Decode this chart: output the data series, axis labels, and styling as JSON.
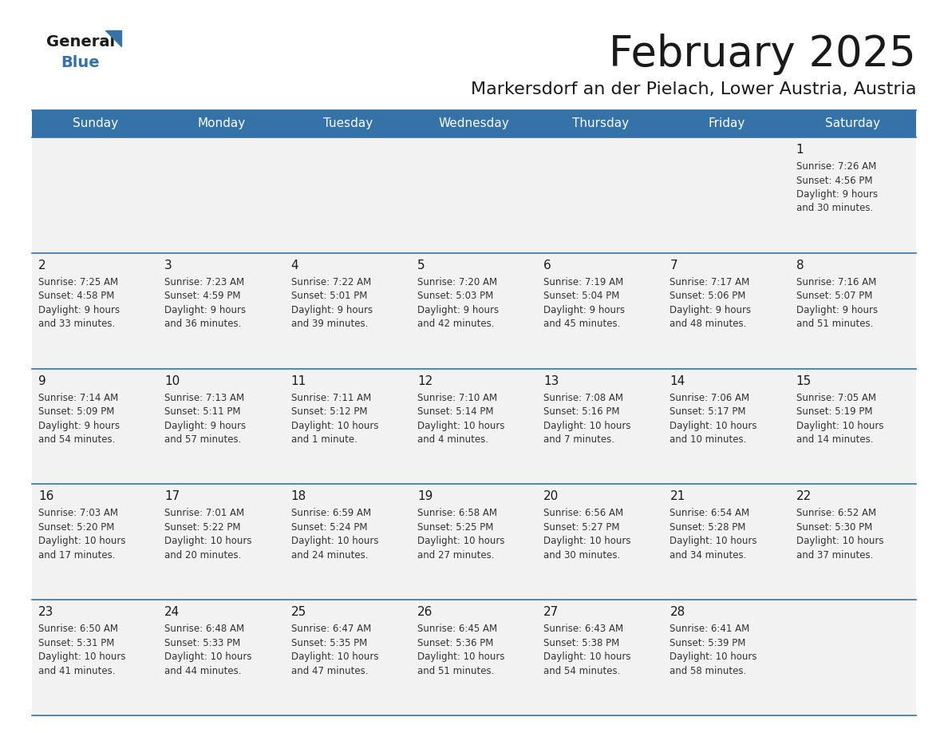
{
  "title": "February 2025",
  "subtitle": "Markersdorf an der Pielach, Lower Austria, Austria",
  "header_bg": "#3472a8",
  "header_text": "#ffffff",
  "day_names": [
    "Sunday",
    "Monday",
    "Tuesday",
    "Wednesday",
    "Thursday",
    "Friday",
    "Saturday"
  ],
  "cell_bg": "#f2f2f2",
  "cell_border_color": "#3472a8",
  "date_color": "#1a1a1a",
  "info_color": "#333333",
  "calendar": [
    [
      null,
      null,
      null,
      null,
      null,
      null,
      {
        "day": 1,
        "sunrise": "7:26 AM",
        "sunset": "4:56 PM",
        "daylight_l1": "9 hours",
        "daylight_l2": "and 30 minutes."
      }
    ],
    [
      {
        "day": 2,
        "sunrise": "7:25 AM",
        "sunset": "4:58 PM",
        "daylight_l1": "9 hours",
        "daylight_l2": "and 33 minutes."
      },
      {
        "day": 3,
        "sunrise": "7:23 AM",
        "sunset": "4:59 PM",
        "daylight_l1": "9 hours",
        "daylight_l2": "and 36 minutes."
      },
      {
        "day": 4,
        "sunrise": "7:22 AM",
        "sunset": "5:01 PM",
        "daylight_l1": "9 hours",
        "daylight_l2": "and 39 minutes."
      },
      {
        "day": 5,
        "sunrise": "7:20 AM",
        "sunset": "5:03 PM",
        "daylight_l1": "9 hours",
        "daylight_l2": "and 42 minutes."
      },
      {
        "day": 6,
        "sunrise": "7:19 AM",
        "sunset": "5:04 PM",
        "daylight_l1": "9 hours",
        "daylight_l2": "and 45 minutes."
      },
      {
        "day": 7,
        "sunrise": "7:17 AM",
        "sunset": "5:06 PM",
        "daylight_l1": "9 hours",
        "daylight_l2": "and 48 minutes."
      },
      {
        "day": 8,
        "sunrise": "7:16 AM",
        "sunset": "5:07 PM",
        "daylight_l1": "9 hours",
        "daylight_l2": "and 51 minutes."
      }
    ],
    [
      {
        "day": 9,
        "sunrise": "7:14 AM",
        "sunset": "5:09 PM",
        "daylight_l1": "9 hours",
        "daylight_l2": "and 54 minutes."
      },
      {
        "day": 10,
        "sunrise": "7:13 AM",
        "sunset": "5:11 PM",
        "daylight_l1": "9 hours",
        "daylight_l2": "and 57 minutes."
      },
      {
        "day": 11,
        "sunrise": "7:11 AM",
        "sunset": "5:12 PM",
        "daylight_l1": "10 hours",
        "daylight_l2": "and 1 minute."
      },
      {
        "day": 12,
        "sunrise": "7:10 AM",
        "sunset": "5:14 PM",
        "daylight_l1": "10 hours",
        "daylight_l2": "and 4 minutes."
      },
      {
        "day": 13,
        "sunrise": "7:08 AM",
        "sunset": "5:16 PM",
        "daylight_l1": "10 hours",
        "daylight_l2": "and 7 minutes."
      },
      {
        "day": 14,
        "sunrise": "7:06 AM",
        "sunset": "5:17 PM",
        "daylight_l1": "10 hours",
        "daylight_l2": "and 10 minutes."
      },
      {
        "day": 15,
        "sunrise": "7:05 AM",
        "sunset": "5:19 PM",
        "daylight_l1": "10 hours",
        "daylight_l2": "and 14 minutes."
      }
    ],
    [
      {
        "day": 16,
        "sunrise": "7:03 AM",
        "sunset": "5:20 PM",
        "daylight_l1": "10 hours",
        "daylight_l2": "and 17 minutes."
      },
      {
        "day": 17,
        "sunrise": "7:01 AM",
        "sunset": "5:22 PM",
        "daylight_l1": "10 hours",
        "daylight_l2": "and 20 minutes."
      },
      {
        "day": 18,
        "sunrise": "6:59 AM",
        "sunset": "5:24 PM",
        "daylight_l1": "10 hours",
        "daylight_l2": "and 24 minutes."
      },
      {
        "day": 19,
        "sunrise": "6:58 AM",
        "sunset": "5:25 PM",
        "daylight_l1": "10 hours",
        "daylight_l2": "and 27 minutes."
      },
      {
        "day": 20,
        "sunrise": "6:56 AM",
        "sunset": "5:27 PM",
        "daylight_l1": "10 hours",
        "daylight_l2": "and 30 minutes."
      },
      {
        "day": 21,
        "sunrise": "6:54 AM",
        "sunset": "5:28 PM",
        "daylight_l1": "10 hours",
        "daylight_l2": "and 34 minutes."
      },
      {
        "day": 22,
        "sunrise": "6:52 AM",
        "sunset": "5:30 PM",
        "daylight_l1": "10 hours",
        "daylight_l2": "and 37 minutes."
      }
    ],
    [
      {
        "day": 23,
        "sunrise": "6:50 AM",
        "sunset": "5:31 PM",
        "daylight_l1": "10 hours",
        "daylight_l2": "and 41 minutes."
      },
      {
        "day": 24,
        "sunrise": "6:48 AM",
        "sunset": "5:33 PM",
        "daylight_l1": "10 hours",
        "daylight_l2": "and 44 minutes."
      },
      {
        "day": 25,
        "sunrise": "6:47 AM",
        "sunset": "5:35 PM",
        "daylight_l1": "10 hours",
        "daylight_l2": "and 47 minutes."
      },
      {
        "day": 26,
        "sunrise": "6:45 AM",
        "sunset": "5:36 PM",
        "daylight_l1": "10 hours",
        "daylight_l2": "and 51 minutes."
      },
      {
        "day": 27,
        "sunrise": "6:43 AM",
        "sunset": "5:38 PM",
        "daylight_l1": "10 hours",
        "daylight_l2": "and 54 minutes."
      },
      {
        "day": 28,
        "sunrise": "6:41 AM",
        "sunset": "5:39 PM",
        "daylight_l1": "10 hours",
        "daylight_l2": "and 58 minutes."
      },
      null
    ]
  ]
}
